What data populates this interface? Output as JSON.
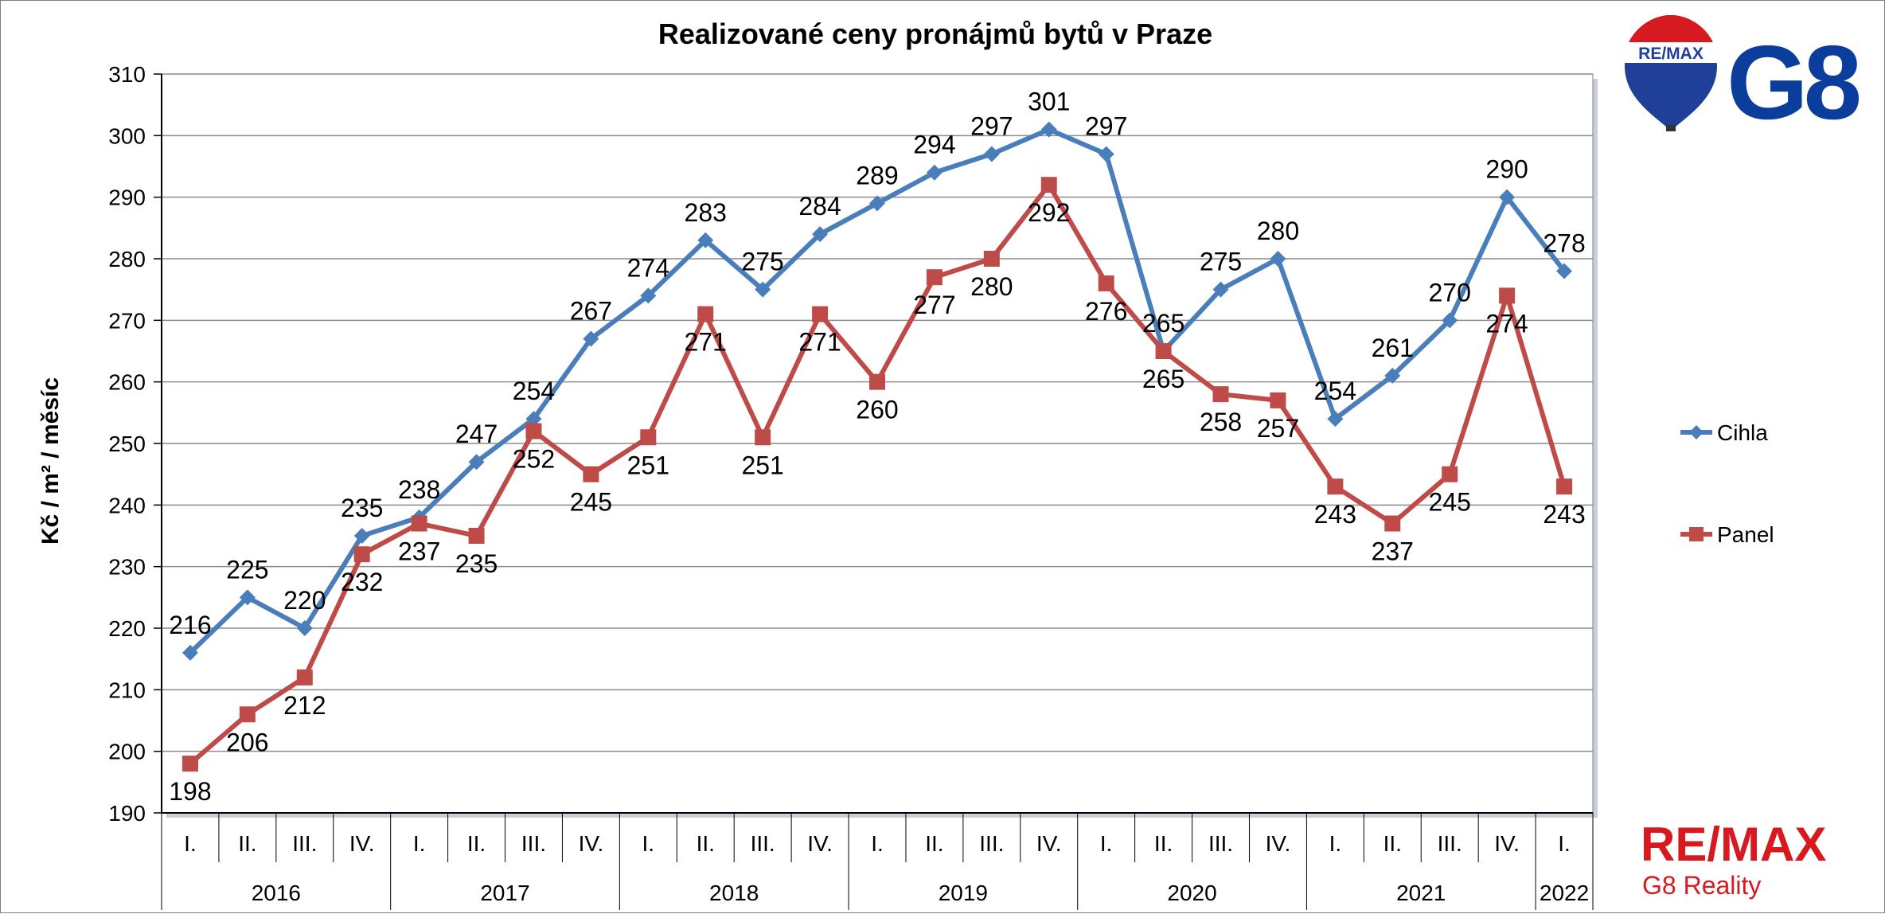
{
  "chart_data": {
    "type": "line",
    "title": "Realizované ceny pronájmů bytů v Praze",
    "ylabel": "Kč / m² / měsíc",
    "ylim": [
      190,
      310
    ],
    "yticks": [
      190,
      200,
      210,
      220,
      230,
      240,
      250,
      260,
      270,
      280,
      290,
      300,
      310
    ],
    "categories": [
      "I.",
      "II.",
      "III.",
      "IV.",
      "I.",
      "II.",
      "III.",
      "IV.",
      "I.",
      "II.",
      "III.",
      "IV.",
      "I.",
      "II.",
      "III.",
      "IV.",
      "I.",
      "II.",
      "III.",
      "IV.",
      "I.",
      "II.",
      "III.",
      "IV.",
      "I."
    ],
    "years": [
      {
        "label": "2016",
        "count": 4
      },
      {
        "label": "2017",
        "count": 4
      },
      {
        "label": "2018",
        "count": 4
      },
      {
        "label": "2019",
        "count": 4
      },
      {
        "label": "2020",
        "count": 4
      },
      {
        "label": "2021",
        "count": 4
      },
      {
        "label": "2022",
        "count": 1
      }
    ],
    "series": [
      {
        "name": "Cihla",
        "color": "#4a7ebb",
        "marker": "diamond",
        "values": [
          216,
          225,
          220,
          235,
          238,
          247,
          254,
          267,
          274,
          283,
          275,
          284,
          289,
          294,
          297,
          301,
          297,
          265,
          275,
          280,
          254,
          261,
          270,
          290,
          278
        ]
      },
      {
        "name": "Panel",
        "color": "#be4b48",
        "marker": "square",
        "values": [
          198,
          206,
          212,
          232,
          237,
          235,
          252,
          245,
          251,
          271,
          251,
          271,
          260,
          277,
          280,
          292,
          276,
          265,
          258,
          257,
          243,
          237,
          245,
          274,
          243
        ]
      }
    ],
    "grid": true,
    "legend": "right"
  },
  "logos": {
    "balloon_text": "RE/MAX",
    "brand_mark": "G8",
    "footer_brand": "RE/MAX",
    "footer_sub": "G8 Reality",
    "brand_blue": "#0a3d9c",
    "brand_red": "#d71920"
  }
}
